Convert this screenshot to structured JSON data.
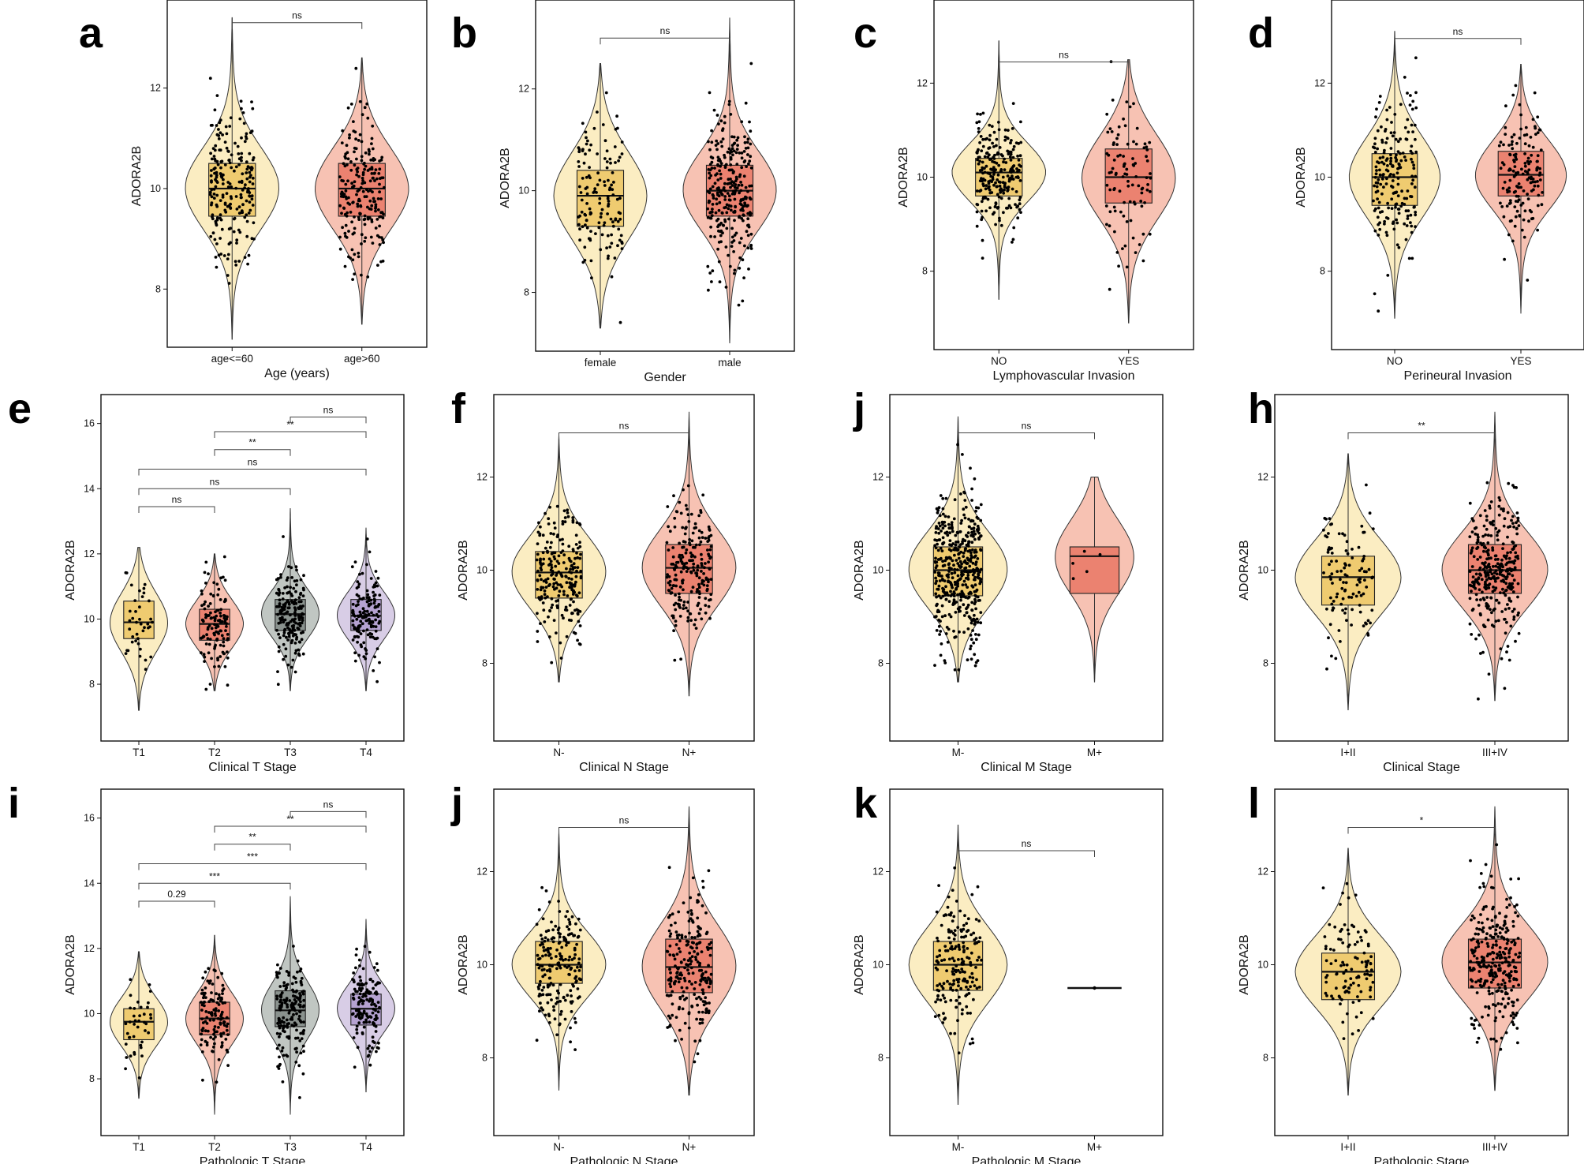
{
  "figure": {
    "colors": {
      "yellow_violin": "#FBEDC2",
      "yellow_box": "#EFCB70",
      "red_violin": "#F7C2B3",
      "red_box": "#EB8270",
      "gray_violin": "#C0C6C2",
      "gray_box": "#8A928E",
      "purple_violin": "#D8CDE6",
      "purple_box": "#B5A2D1",
      "point": "#000000",
      "line": "#333333"
    }
  },
  "chart_data": [
    {
      "panel": "a",
      "type": "violin-box",
      "ylabel": "ADORA2B",
      "xlabel": "Age (years)",
      "ylim": [
        7.0,
        13.5
      ],
      "yticks": [
        8,
        10,
        12
      ],
      "groups": [
        {
          "label": "age<=60",
          "color": "yellow",
          "min": 7.0,
          "q1": 9.45,
          "median": 10.0,
          "q3": 10.5,
          "max": 13.4,
          "n_points": 220
        },
        {
          "label": "age>60",
          "color": "red",
          "min": 7.3,
          "q1": 9.45,
          "median": 10.0,
          "q3": 10.5,
          "max": 12.6,
          "n_points": 220
        }
      ],
      "comparisons": [
        {
          "from": 0,
          "to": 1,
          "label": "ns",
          "y": 13.3
        }
      ]
    },
    {
      "panel": "b",
      "type": "violin-box",
      "ylabel": "ADORA2B",
      "xlabel": "Gender",
      "ylim": [
        7.0,
        13.5
      ],
      "yticks": [
        8,
        10,
        12
      ],
      "groups": [
        {
          "label": "female",
          "color": "yellow",
          "min": 7.3,
          "q1": 9.3,
          "median": 9.9,
          "q3": 10.4,
          "max": 12.5,
          "n_points": 140
        },
        {
          "label": "male",
          "color": "red",
          "min": 7.0,
          "q1": 9.5,
          "median": 10.0,
          "q3": 10.5,
          "max": 13.4,
          "n_points": 300
        }
      ],
      "comparisons": [
        {
          "from": 0,
          "to": 1,
          "label": "ns",
          "y": 13.0
        }
      ]
    },
    {
      "panel": "c",
      "type": "violin-box",
      "ylabel": "ADORA2B",
      "xlabel": "Lymphovascular Invasion",
      "ylim": [
        6.5,
        13.5
      ],
      "yticks": [
        8,
        10,
        12
      ],
      "groups": [
        {
          "label": "NO",
          "color": "yellow",
          "min": 7.4,
          "q1": 9.6,
          "median": 10.1,
          "q3": 10.4,
          "max": 12.9,
          "n_points": 240
        },
        {
          "label": "YES",
          "color": "red",
          "min": 6.9,
          "q1": 9.45,
          "median": 10.0,
          "q3": 10.6,
          "max": 12.5,
          "n_points": 100
        }
      ],
      "comparisons": [
        {
          "from": 0,
          "to": 1,
          "label": "ns",
          "y": 12.45
        }
      ]
    },
    {
      "panel": "d",
      "type": "violin-box",
      "ylabel": "ADORA2B",
      "xlabel": "Perineural Invasion",
      "ylim": [
        6.5,
        13.5
      ],
      "yticks": [
        8,
        10,
        12
      ],
      "groups": [
        {
          "label": "NO",
          "color": "yellow",
          "min": 7.0,
          "q1": 9.4,
          "median": 10.0,
          "q3": 10.5,
          "max": 13.1,
          "n_points": 200
        },
        {
          "label": "YES",
          "color": "red",
          "min": 7.1,
          "q1": 9.6,
          "median": 10.05,
          "q3": 10.55,
          "max": 12.4,
          "n_points": 150
        }
      ],
      "comparisons": [
        {
          "from": 0,
          "to": 1,
          "label": "ns",
          "y": 12.95
        }
      ]
    },
    {
      "panel": "e",
      "type": "violin-box",
      "ylabel": "ADORA2B",
      "xlabel": "Clinical T Stage",
      "ylim": [
        6.5,
        16.5
      ],
      "yticks": [
        8,
        10,
        12,
        14,
        16
      ],
      "groups": [
        {
          "label": "T1",
          "color": "yellow",
          "min": 7.2,
          "q1": 9.4,
          "median": 9.9,
          "q3": 10.55,
          "max": 12.2,
          "n_points": 40
        },
        {
          "label": "T2",
          "color": "red",
          "min": 7.8,
          "q1": 9.35,
          "median": 9.85,
          "q3": 10.3,
          "max": 12.0,
          "n_points": 120
        },
        {
          "label": "T3",
          "color": "gray",
          "min": 7.8,
          "q1": 9.65,
          "median": 10.15,
          "q3": 10.6,
          "max": 13.4,
          "n_points": 180
        },
        {
          "label": "T4",
          "color": "purple",
          "min": 7.8,
          "q1": 9.65,
          "median": 10.1,
          "q3": 10.6,
          "max": 12.8,
          "n_points": 150
        }
      ],
      "comparisons": [
        {
          "from": 0,
          "to": 1,
          "label": "ns",
          "y": 13.45
        },
        {
          "from": 0,
          "to": 2,
          "label": "ns",
          "y": 14.0
        },
        {
          "from": 0,
          "to": 3,
          "label": "ns",
          "y": 14.6
        },
        {
          "from": 1,
          "to": 2,
          "label": "**",
          "y": 15.2
        },
        {
          "from": 1,
          "to": 3,
          "label": "**",
          "y": 15.75
        },
        {
          "from": 2,
          "to": 3,
          "label": "ns",
          "y": 16.2
        }
      ]
    },
    {
      "panel": "f",
      "type": "violin-box",
      "ylabel": "ADORA2B",
      "xlabel": "Clinical N Stage",
      "ylim": [
        6.5,
        13.5
      ],
      "yticks": [
        8,
        10,
        12
      ],
      "groups": [
        {
          "label": "N-",
          "color": "yellow",
          "min": 7.6,
          "q1": 9.4,
          "median": 9.95,
          "q3": 10.4,
          "max": 12.9,
          "n_points": 230
        },
        {
          "label": "N+",
          "color": "red",
          "min": 7.3,
          "q1": 9.5,
          "median": 10.05,
          "q3": 10.55,
          "max": 13.4,
          "n_points": 220
        }
      ],
      "comparisons": [
        {
          "from": 0,
          "to": 1,
          "label": "ns",
          "y": 12.95
        }
      ]
    },
    {
      "panel": "j",
      "type": "violin-box",
      "ylabel": "ADORA2B",
      "xlabel": "Clinical M Stage",
      "ylim": [
        6.5,
        13.5
      ],
      "yticks": [
        8,
        10,
        12
      ],
      "groups": [
        {
          "label": "M-",
          "color": "yellow",
          "min": 7.6,
          "q1": 9.45,
          "median": 10.0,
          "q3": 10.5,
          "max": 13.3,
          "n_points": 450
        },
        {
          "label": "M+",
          "color": "red",
          "min": 7.6,
          "q1": 9.5,
          "median": 10.3,
          "q3": 10.5,
          "max": 12.0,
          "n_points": 5
        }
      ],
      "comparisons": [
        {
          "from": 0,
          "to": 1,
          "label": "ns",
          "y": 12.95
        }
      ]
    },
    {
      "panel": "h",
      "type": "violin-box",
      "ylabel": "ADORA2B",
      "xlabel": "Clinical Stage",
      "ylim": [
        6.5,
        13.5
      ],
      "yticks": [
        8,
        10,
        12
      ],
      "groups": [
        {
          "label": "I+II",
          "color": "yellow",
          "min": 7.0,
          "q1": 9.25,
          "median": 9.85,
          "q3": 10.3,
          "max": 12.5,
          "n_points": 110
        },
        {
          "label": "III+IV",
          "color": "red",
          "min": 7.2,
          "q1": 9.5,
          "median": 10.0,
          "q3": 10.55,
          "max": 13.4,
          "n_points": 330
        }
      ],
      "comparisons": [
        {
          "from": 0,
          "to": 1,
          "label": "**",
          "y": 12.95
        }
      ]
    },
    {
      "panel": "i",
      "type": "violin-box",
      "ylabel": "ADORA2B",
      "xlabel": "Pathologic T Stage",
      "ylim": [
        6.5,
        16.5
      ],
      "yticks": [
        8,
        10,
        12,
        14,
        16
      ],
      "groups": [
        {
          "label": "T1",
          "color": "yellow",
          "min": 7.4,
          "q1": 9.2,
          "median": 9.75,
          "q3": 10.15,
          "max": 11.9,
          "n_points": 40
        },
        {
          "label": "T2",
          "color": "red",
          "min": 6.9,
          "q1": 9.35,
          "median": 9.85,
          "q3": 10.35,
          "max": 12.4,
          "n_points": 120
        },
        {
          "label": "T3",
          "color": "gray",
          "min": 6.9,
          "q1": 9.6,
          "median": 10.1,
          "q3": 10.7,
          "max": 13.6,
          "n_points": 170
        },
        {
          "label": "T4",
          "color": "purple",
          "min": 7.6,
          "q1": 9.65,
          "median": 10.15,
          "q3": 10.6,
          "max": 12.9,
          "n_points": 150
        }
      ],
      "comparisons": [
        {
          "from": 0,
          "to": 1,
          "label": "0.29",
          "y": 13.45
        },
        {
          "from": 0,
          "to": 2,
          "label": "***",
          "y": 14.0
        },
        {
          "from": 0,
          "to": 3,
          "label": "***",
          "y": 14.6
        },
        {
          "from": 1,
          "to": 2,
          "label": "**",
          "y": 15.2
        },
        {
          "from": 1,
          "to": 3,
          "label": "**",
          "y": 15.75
        },
        {
          "from": 2,
          "to": 3,
          "label": "ns",
          "y": 16.2
        }
      ]
    },
    {
      "panel": "j",
      "type": "violin-box",
      "ylabel": "ADORA2B",
      "xlabel": "Pathologic N Stage",
      "ylim": [
        6.5,
        13.5
      ],
      "yticks": [
        8,
        10,
        12
      ],
      "groups": [
        {
          "label": "N-",
          "color": "yellow",
          "min": 7.3,
          "q1": 9.6,
          "median": 10.0,
          "q3": 10.5,
          "max": 12.9,
          "n_points": 200
        },
        {
          "label": "N+",
          "color": "red",
          "min": 7.2,
          "q1": 9.4,
          "median": 9.95,
          "q3": 10.55,
          "max": 13.4,
          "n_points": 230
        }
      ],
      "comparisons": [
        {
          "from": 0,
          "to": 1,
          "label": "ns",
          "y": 12.95
        }
      ]
    },
    {
      "panel": "k",
      "type": "violin-box",
      "ylabel": "ADORA2B",
      "xlabel": "Pathologic M Stage",
      "ylim": [
        6.5,
        13.5
      ],
      "yticks": [
        8,
        10,
        12
      ],
      "groups": [
        {
          "label": "M-",
          "color": "yellow",
          "min": 7.0,
          "q1": 9.45,
          "median": 10.0,
          "q3": 10.5,
          "max": 13.0,
          "n_points": 190
        },
        {
          "label": "M+",
          "color": "red",
          "min": 9.5,
          "q1": 9.5,
          "median": 9.5,
          "q3": 9.5,
          "max": 9.5,
          "n_points": 1
        }
      ],
      "comparisons": [
        {
          "from": 0,
          "to": 1,
          "label": "ns",
          "y": 12.45
        }
      ]
    },
    {
      "panel": "l",
      "type": "violin-box",
      "ylabel": "ADORA2B",
      "xlabel": "Pathologic Stage",
      "ylim": [
        6.5,
        13.5
      ],
      "yticks": [
        8,
        10,
        12
      ],
      "groups": [
        {
          "label": "I+II",
          "color": "yellow",
          "min": 7.2,
          "q1": 9.25,
          "median": 9.85,
          "q3": 10.25,
          "max": 12.5,
          "n_points": 110
        },
        {
          "label": "III+IV",
          "color": "red",
          "min": 7.3,
          "q1": 9.5,
          "median": 10.05,
          "q3": 10.55,
          "max": 13.4,
          "n_points": 300
        }
      ],
      "comparisons": [
        {
          "from": 0,
          "to": 1,
          "label": "*",
          "y": 12.95
        }
      ]
    }
  ]
}
